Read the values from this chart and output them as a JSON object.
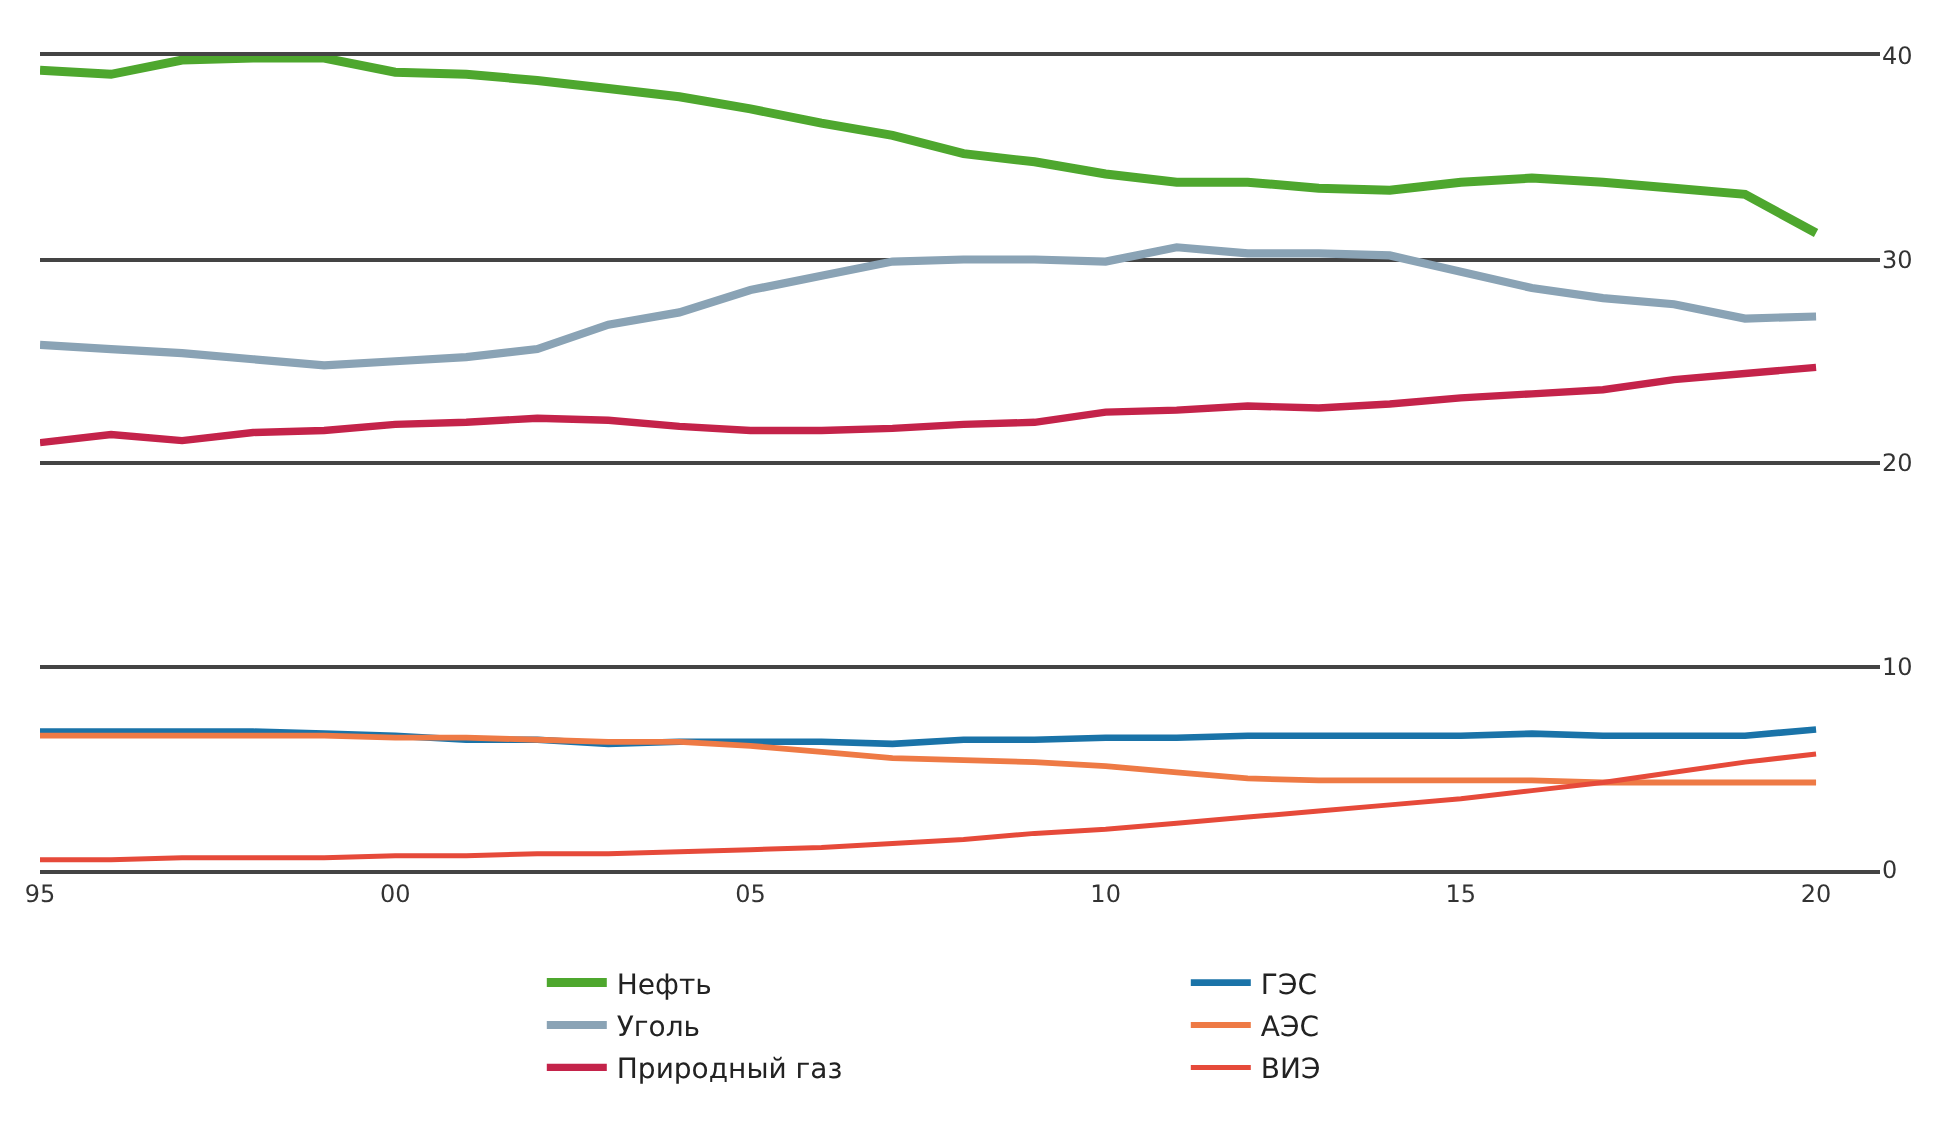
{
  "chart_data": {
    "type": "line",
    "x": [
      1995,
      1996,
      1997,
      1998,
      1999,
      2000,
      2001,
      2002,
      2003,
      2004,
      2005,
      2006,
      2007,
      2008,
      2009,
      2010,
      2011,
      2012,
      2013,
      2014,
      2015,
      2016,
      2017,
      2018,
      2019,
      2020
    ],
    "series": [
      {
        "name": "Нефть",
        "color": "#4ea72e",
        "values": [
          39.3,
          39.1,
          39.8,
          39.9,
          39.9,
          39.2,
          39.1,
          38.8,
          38.4,
          38.0,
          37.4,
          36.7,
          36.1,
          35.2,
          34.8,
          34.2,
          33.8,
          33.8,
          33.5,
          33.4,
          33.8,
          34.0,
          33.8,
          33.5,
          33.2,
          31.3
        ]
      },
      {
        "name": "Уголь",
        "color": "#8aa3b5",
        "values": [
          25.8,
          25.6,
          25.4,
          25.1,
          24.8,
          25.0,
          25.2,
          25.6,
          26.8,
          27.4,
          28.5,
          29.2,
          29.9,
          30.0,
          30.0,
          29.9,
          30.6,
          30.3,
          30.3,
          30.2,
          29.4,
          28.6,
          28.1,
          27.8,
          27.1,
          27.2
        ]
      },
      {
        "name": "Природный газ",
        "color": "#c4234a",
        "values": [
          21.0,
          21.4,
          21.1,
          21.5,
          21.6,
          21.9,
          22.0,
          22.2,
          22.1,
          21.8,
          21.6,
          21.6,
          21.7,
          21.9,
          22.0,
          22.5,
          22.6,
          22.8,
          22.7,
          22.9,
          23.2,
          23.4,
          23.6,
          24.1,
          24.4,
          24.7
        ]
      },
      {
        "name": "ГЭС",
        "color": "#1a73a8",
        "values": [
          6.8,
          6.8,
          6.8,
          6.8,
          6.7,
          6.6,
          6.4,
          6.4,
          6.2,
          6.3,
          6.3,
          6.3,
          6.2,
          6.4,
          6.4,
          6.5,
          6.5,
          6.6,
          6.6,
          6.6,
          6.6,
          6.7,
          6.6,
          6.6,
          6.6,
          6.9
        ]
      },
      {
        "name": "АЭС",
        "color": "#ee7a45",
        "values": [
          6.6,
          6.6,
          6.6,
          6.6,
          6.6,
          6.5,
          6.5,
          6.4,
          6.3,
          6.3,
          6.1,
          5.8,
          5.5,
          5.4,
          5.3,
          5.1,
          4.8,
          4.5,
          4.4,
          4.4,
          4.4,
          4.4,
          4.3,
          4.3,
          4.3,
          4.3
        ]
      },
      {
        "name": "ВИЭ",
        "color": "#e64a3a",
        "values": [
          0.5,
          0.5,
          0.6,
          0.6,
          0.6,
          0.7,
          0.7,
          0.8,
          0.8,
          0.9,
          1.0,
          1.1,
          1.3,
          1.5,
          1.8,
          2.0,
          2.3,
          2.6,
          2.9,
          3.2,
          3.5,
          3.9,
          4.3,
          4.8,
          5.3,
          5.7
        ]
      }
    ],
    "xlim": [
      1995,
      2020.9
    ],
    "xticks": [
      {
        "value": 1995,
        "label": "95"
      },
      {
        "value": 2000,
        "label": "00"
      },
      {
        "value": 2005,
        "label": "05"
      },
      {
        "value": 2010,
        "label": "10"
      },
      {
        "value": 2015,
        "label": "15"
      },
      {
        "value": 2020,
        "label": "20"
      }
    ],
    "ylim": [
      0,
      40
    ],
    "yticks": [
      0,
      10,
      20,
      30,
      40
    ],
    "grid": "y",
    "legend": "bottom",
    "marker": "none",
    "line_style": "solid"
  }
}
